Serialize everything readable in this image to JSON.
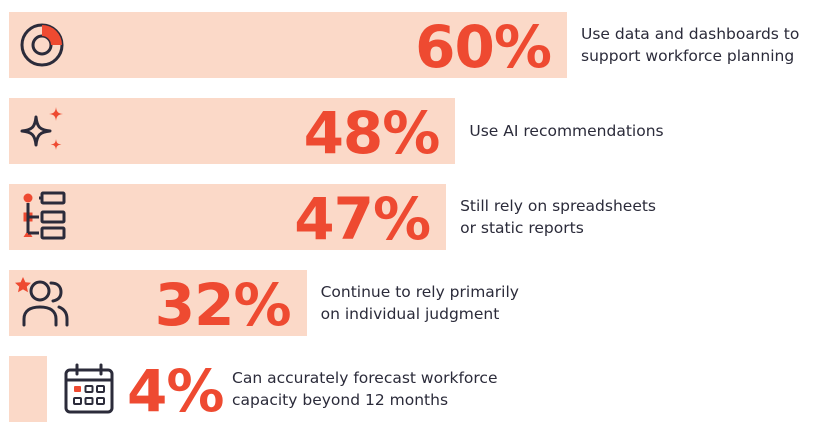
{
  "chart_data": {
    "type": "bar",
    "orientation": "horizontal",
    "unit": "%",
    "colors": {
      "bar": "#fbd9c8",
      "value_text": "#ee4a31",
      "icon_stroke": "#2b2b3a",
      "icon_accent": "#ee4a31",
      "label_text": "#2b2b3a"
    },
    "items": [
      {
        "value": 60,
        "value_label": "60%",
        "icon": "donut-chart-icon",
        "label_lines": [
          "Use data and dashboards to",
          "support workforce planning"
        ]
      },
      {
        "value": 48,
        "value_label": "48%",
        "icon": "sparkle-icon",
        "label_lines": [
          "Use AI recommendations"
        ]
      },
      {
        "value": 47,
        "value_label": "47%",
        "icon": "hierarchy-list-icon",
        "label_lines": [
          "Still rely on spreadsheets",
          "or static reports"
        ]
      },
      {
        "value": 32,
        "value_label": "32%",
        "icon": "people-star-icon",
        "label_lines": [
          "Continue to rely primarily",
          "on individual judgment"
        ]
      },
      {
        "value": 4,
        "value_label": "4%",
        "icon": "calendar-icon",
        "label_lines": [
          "Can accurately forecast workforce",
          "capacity beyond 12 months"
        ]
      }
    ]
  }
}
